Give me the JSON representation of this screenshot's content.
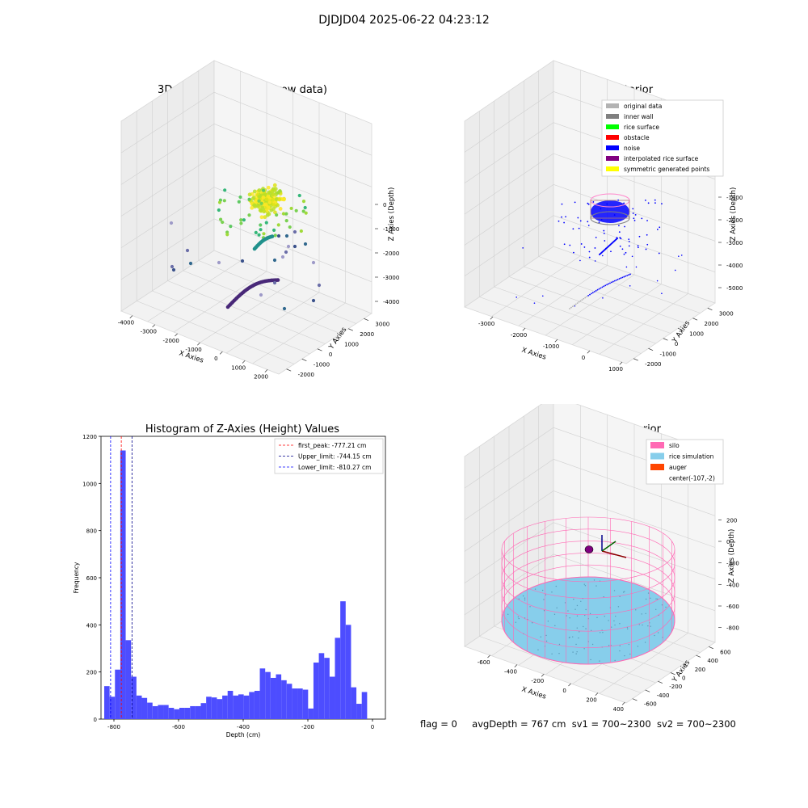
{
  "figure": {
    "suptitle": "DJDJD04 2025-06-22 04:23:12"
  },
  "footer": {
    "flag": "flag = 0",
    "avg_depth": "avgDepth = 767 cm",
    "sv1": "sv1 = 700~2300",
    "sv2": "sv2 = 700~2300"
  },
  "chart_data": [
    {
      "type": "scatter",
      "title": "3D Plot of Silo Interior(row data)",
      "xlabel": "X Axies",
      "ylabel": "Y Axies",
      "zlabel": "Z Axies (Depth)",
      "x_ticks": [
        "-4000",
        "-3000",
        "-2000",
        "-1000",
        "0",
        "1000",
        "2000"
      ],
      "y_ticks": [
        "-2000",
        "-1000",
        "0",
        "1000",
        "2000",
        "3000"
      ],
      "z_ticks": [
        "0",
        "-1000",
        "-2000",
        "-3000",
        "-4000"
      ],
      "colormap": "viridis",
      "grid": true
    },
    {
      "type": "scatter",
      "title": "3D classify of Silo Interior",
      "xlabel": "X Axies",
      "ylabel": "Y Axies",
      "zlabel": "Z Axies (Depth)",
      "x_ticks": [
        "-3000",
        "-2000",
        "-1000",
        "0",
        "1000"
      ],
      "y_ticks": [
        "-2000",
        "-1000",
        "0",
        "1000",
        "2000",
        "3000"
      ],
      "z_ticks": [
        "-1000",
        "-2000",
        "-3000",
        "-4000",
        "-5000"
      ],
      "legend_position": "top-right",
      "legend": [
        {
          "label": "original data",
          "color": "#b3b3b3"
        },
        {
          "label": "inner wall",
          "color": "#808080"
        },
        {
          "label": "rice surface",
          "color": "#00ff00"
        },
        {
          "label": "obstacle",
          "color": "#ff0000"
        },
        {
          "label": "noise",
          "color": "#0000ff"
        },
        {
          "label": "interpolated rice surface",
          "color": "#800080"
        },
        {
          "label": "symmetric generated points",
          "color": "#ffff00"
        }
      ],
      "grid": true
    },
    {
      "type": "bar",
      "title": "Histogram of Z-Axies (Height) Values",
      "xlabel": "Depth (cm)",
      "ylabel": "Frequency",
      "bar_color": "#4d4dff",
      "xlim": [
        -840,
        40
      ],
      "ylim": [
        0,
        1200
      ],
      "x_ticks": [
        -800,
        -600,
        -400,
        -200,
        0
      ],
      "y_ticks": [
        0,
        200,
        400,
        600,
        800,
        1000,
        1200
      ],
      "bin_start": -830,
      "bin_width": 16.6,
      "values": [
        140,
        95,
        210,
        1140,
        335,
        180,
        100,
        90,
        70,
        55,
        60,
        60,
        48,
        42,
        48,
        48,
        55,
        55,
        68,
        95,
        92,
        85,
        100,
        120,
        100,
        105,
        100,
        115,
        120,
        215,
        200,
        175,
        190,
        165,
        150,
        130,
        130,
        125,
        45,
        240,
        280,
        260,
        180,
        345,
        500,
        400,
        135,
        65,
        115
      ],
      "vlines": [
        {
          "x": -777.21,
          "label": "first_peak: -777.21 cm",
          "color": "#ff0000"
        },
        {
          "x": -744.15,
          "label": "Upper_limit: -744.15 cm",
          "color": "#00008b"
        },
        {
          "x": -810.27,
          "label": "Lower_limit: -810.27 cm",
          "color": "#0000ff"
        }
      ],
      "legend_position": "top-right"
    },
    {
      "type": "scatter",
      "title": "3D simulation of Silo Interior",
      "xlabel": "X Axies",
      "ylabel": "Y Axies",
      "zlabel": "Z Axies (Depth)",
      "x_ticks": [
        "-600",
        "-400",
        "-200",
        "0",
        "200",
        "400"
      ],
      "y_ticks": [
        "-600",
        "-400",
        "-200",
        "0",
        "200",
        "400",
        "600"
      ],
      "z_ticks": [
        "200",
        "0",
        "-200",
        "-400",
        "-600",
        "-800"
      ],
      "legend_position": "top-right",
      "legend": [
        {
          "label": "silo",
          "color": "#ff69b4"
        },
        {
          "label": "rice simulation",
          "color": "#87ceeb"
        },
        {
          "label": "auger",
          "color": "#ff4500"
        },
        {
          "label": "center(-107,-2)",
          "color": ""
        }
      ],
      "grid": true
    }
  ]
}
